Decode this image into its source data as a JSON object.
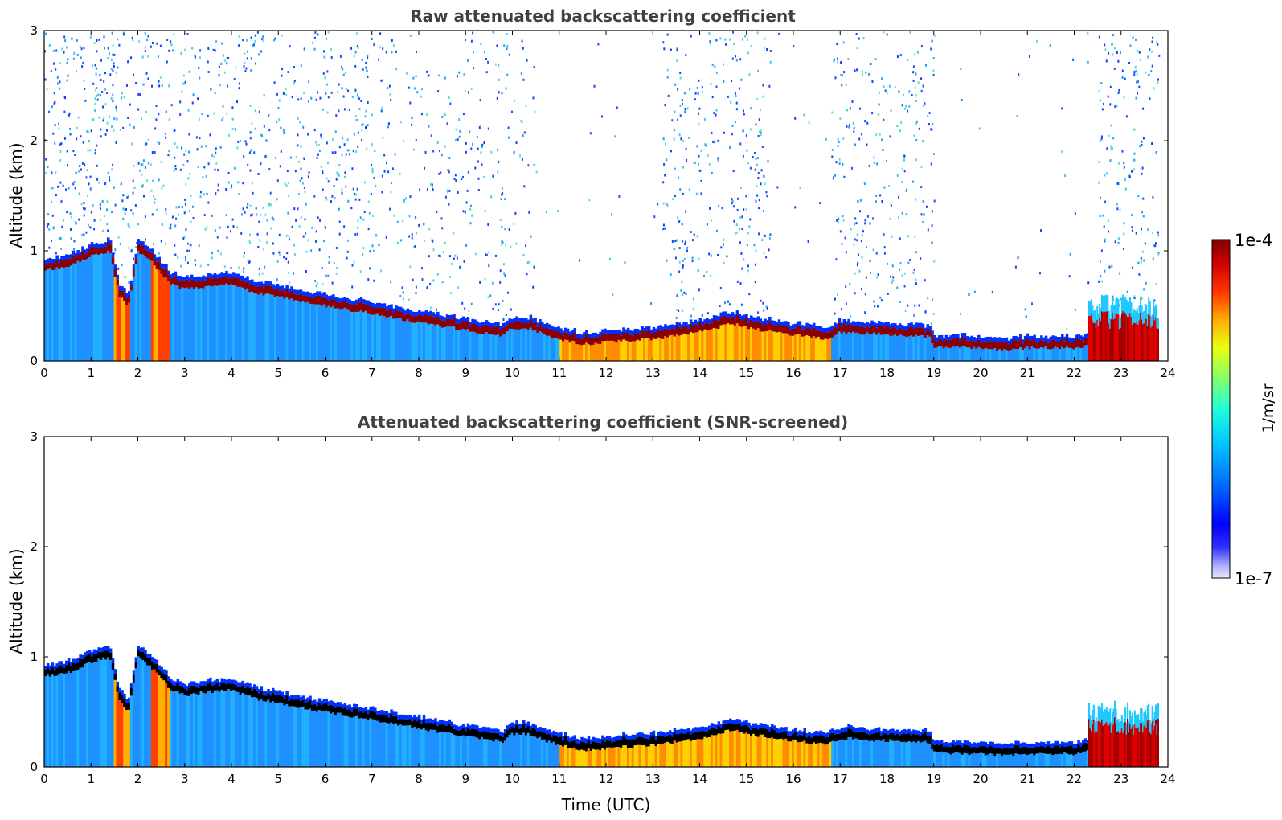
{
  "chart_data": [
    {
      "type": "heatmap",
      "title": "Raw attenuated backscattering coefficient",
      "ylabel": "Altitude (km)",
      "xlabel": "",
      "xlim": [
        0,
        24
      ],
      "ylim": [
        0,
        3
      ],
      "xticks": [
        "0",
        "1",
        "2",
        "3",
        "4",
        "5",
        "6",
        "7",
        "8",
        "9",
        "10",
        "11",
        "12",
        "13",
        "14",
        "15",
        "16",
        "17",
        "18",
        "19",
        "20",
        "21",
        "22",
        "23",
        "24"
      ],
      "yticks": [
        "0",
        "1",
        "2",
        "3"
      ],
      "colormap": "jet",
      "cloud_base_km": {
        "x": [
          0,
          0.5,
          1.0,
          1.4,
          1.6,
          1.8,
          2.0,
          2.3,
          2.7,
          3.0,
          3.5,
          4.0,
          4.5,
          5.0,
          5.5,
          6.0,
          7.0,
          8.0,
          9.0,
          9.8,
          10.0,
          10.3,
          11.0,
          11.5,
          12.0,
          13.0,
          14.0,
          14.7,
          15.0,
          16.0,
          16.7,
          17.0,
          18.0,
          18.9,
          19.0,
          20.0,
          20.5,
          21.0,
          22.0,
          22.3
        ],
        "y": [
          0.83,
          0.85,
          0.95,
          1.0,
          0.6,
          0.5,
          1.0,
          0.9,
          0.7,
          0.65,
          0.68,
          0.7,
          0.62,
          0.58,
          0.54,
          0.5,
          0.43,
          0.35,
          0.28,
          0.23,
          0.3,
          0.3,
          0.2,
          0.15,
          0.17,
          0.2,
          0.26,
          0.34,
          0.3,
          0.24,
          0.2,
          0.26,
          0.24,
          0.22,
          0.13,
          0.12,
          0.1,
          0.12,
          0.12,
          0.14
        ]
      },
      "aerosol_top_km": [
        {
          "x_start": 22.3,
          "x_end": 23.8,
          "top": 0.55
        }
      ],
      "noise": true
    },
    {
      "type": "heatmap",
      "title": "Attenuated backscattering coefficient (SNR-screened)",
      "ylabel": "Altitude (km)",
      "xlabel": "Time (UTC)",
      "xlim": [
        0,
        24
      ],
      "ylim": [
        0,
        3
      ],
      "xticks": [
        "0",
        "1",
        "2",
        "3",
        "4",
        "5",
        "6",
        "7",
        "8",
        "9",
        "10",
        "11",
        "12",
        "13",
        "14",
        "15",
        "16",
        "17",
        "18",
        "19",
        "20",
        "21",
        "22",
        "23",
        "24"
      ],
      "yticks": [
        "0",
        "1",
        "2",
        "3"
      ],
      "colormap": "jet",
      "noise": false
    }
  ],
  "colorbar": {
    "max_label": "1e-4",
    "min_label": "1e-7",
    "label": "1/m/sr",
    "scale": "log",
    "range": [
      1e-07,
      0.0001
    ]
  }
}
